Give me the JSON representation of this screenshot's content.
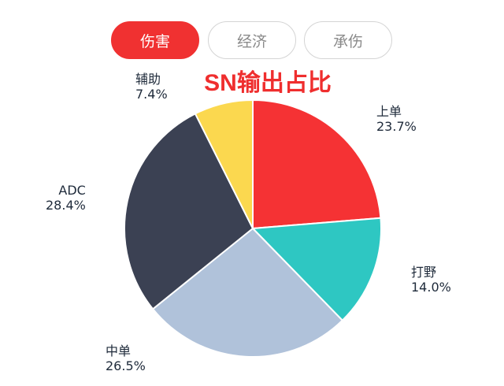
{
  "tabs": [
    {
      "label": "伤害",
      "active": true
    },
    {
      "label": "经济",
      "active": false
    },
    {
      "label": "承伤",
      "active": false
    }
  ],
  "chart_data": {
    "type": "pie",
    "title": "SN输出占比",
    "categories": [
      "上单",
      "打野",
      "中单",
      "ADC",
      "辅助"
    ],
    "values": [
      23.7,
      14.0,
      26.5,
      28.4,
      7.4
    ],
    "value_labels": [
      "23.7%",
      "14.0%",
      "26.5%",
      "28.4%",
      "7.4%"
    ],
    "colors": [
      "#f53234",
      "#2ec7c2",
      "#b0c2da",
      "#3b4153",
      "#fbd84f"
    ],
    "start": "12 o'clock",
    "direction": "clockwise"
  }
}
